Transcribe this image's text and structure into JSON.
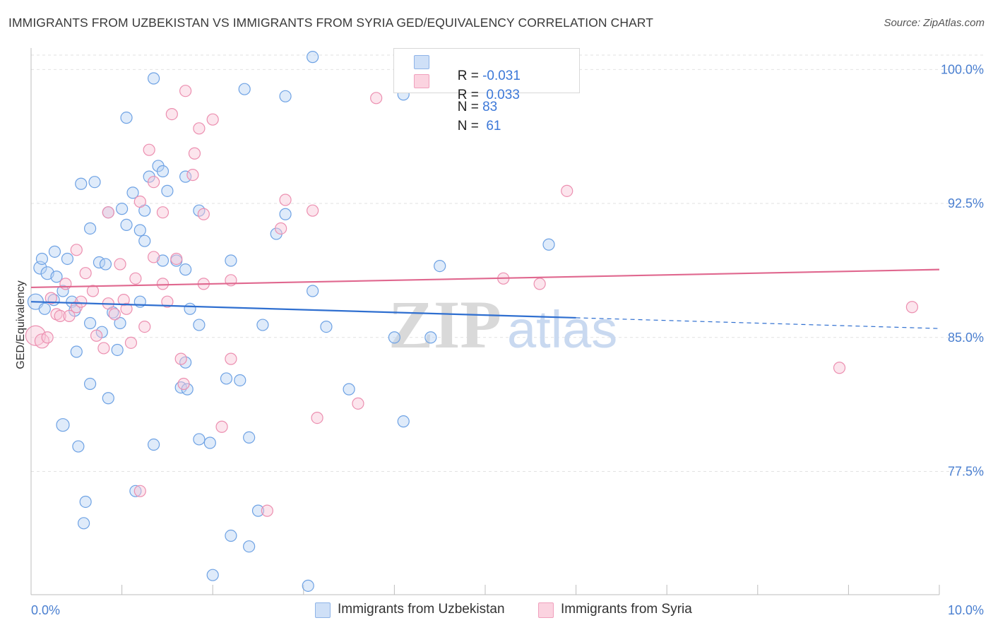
{
  "header": {
    "title": "IMMIGRANTS FROM UZBEKISTAN VS IMMIGRANTS FROM SYRIA GED/EQUIVALENCY CORRELATION CHART",
    "source": "Source: ZipAtlas.com"
  },
  "watermark": {
    "zip": "ZIP",
    "atlas": "atlas"
  },
  "legend_top": {
    "rows": [
      {
        "r_label": "R = ",
        "r_value": "-0.031",
        "n_label": "N = ",
        "n_value": "83",
        "color": "#a9c8f0"
      },
      {
        "r_label": "R = ",
        "r_value": " 0.033",
        "n_label": "N = ",
        "n_value": " 61",
        "color": "#f7b8cc"
      }
    ]
  },
  "legend_bottom": {
    "items": [
      {
        "label": "Immigrants from Uzbekistan",
        "color": "#a9c8f0"
      },
      {
        "label": "Immigrants from Syria",
        "color": "#f7b8cc"
      }
    ]
  },
  "chart_data": {
    "type": "scatter",
    "title": "IMMIGRANTS FROM UZBEKISTAN VS IMMIGRANTS FROM SYRIA GED/EQUIVALENCY CORRELATION CHART",
    "xlabel": "",
    "ylabel": "GED/Equivalency",
    "xlim": [
      0,
      10
    ],
    "ylim": [
      70.6,
      101.2
    ],
    "x_tick_labels": [
      "0.0%",
      "10.0%"
    ],
    "y_ticks": [
      77.5,
      85.0,
      92.5,
      100.0
    ],
    "y_tick_labels": [
      "77.5%",
      "85.0%",
      "92.5%",
      "100.0%"
    ],
    "grid": true,
    "legend_position": "bottom",
    "colors": {
      "uzbekistan": "#5b9be6",
      "syria": "#ee82a6",
      "uz_line": "#2f6fd0",
      "sy_line": "#e0688f"
    },
    "series": [
      {
        "name": "Immigrants from Uzbekistan",
        "r": -0.031,
        "n": 83,
        "trend": {
          "x0": 0.0,
          "y0": 87.0,
          "x1": 6.0,
          "y1": 86.1,
          "dash_to_x": 10.0,
          "dash_to_y": 85.5
        },
        "points": [
          [
            0.05,
            87.0,
            11
          ],
          [
            0.15,
            86.6,
            8
          ],
          [
            0.25,
            87.1,
            8
          ],
          [
            0.35,
            87.6,
            8
          ],
          [
            0.1,
            88.9,
            9
          ],
          [
            0.18,
            88.6,
            9
          ],
          [
            0.28,
            88.4,
            8
          ],
          [
            0.12,
            89.4,
            8
          ],
          [
            0.4,
            89.4,
            8
          ],
          [
            0.26,
            89.8,
            8
          ],
          [
            0.45,
            87.0,
            8
          ],
          [
            0.48,
            86.5,
            8
          ],
          [
            0.65,
            85.8,
            8
          ],
          [
            0.78,
            85.3,
            8
          ],
          [
            0.9,
            86.4,
            8
          ],
          [
            0.98,
            85.8,
            8
          ],
          [
            0.5,
            84.2,
            8
          ],
          [
            0.95,
            84.3,
            8
          ],
          [
            0.75,
            89.2,
            8
          ],
          [
            0.82,
            89.1,
            8
          ],
          [
            1.2,
            87.0,
            8
          ],
          [
            1.45,
            89.3,
            8
          ],
          [
            1.6,
            89.3,
            8
          ],
          [
            1.7,
            88.8,
            8
          ],
          [
            1.75,
            86.6,
            8
          ],
          [
            1.85,
            85.7,
            8
          ],
          [
            2.2,
            89.3,
            8
          ],
          [
            2.55,
            85.7,
            8
          ],
          [
            3.1,
            87.6,
            8
          ],
          [
            3.25,
            85.6,
            8
          ],
          [
            4.0,
            85.0,
            8
          ],
          [
            4.4,
            85.0,
            8
          ],
          [
            4.5,
            89.0,
            8
          ],
          [
            5.7,
            90.2,
            8
          ],
          [
            0.55,
            93.6,
            8
          ],
          [
            0.7,
            93.7,
            8
          ],
          [
            0.65,
            91.1,
            8
          ],
          [
            0.85,
            92.0,
            8
          ],
          [
            1.0,
            92.2,
            8
          ],
          [
            1.05,
            91.3,
            8
          ],
          [
            1.12,
            93.1,
            8
          ],
          [
            1.2,
            91.0,
            8
          ],
          [
            1.25,
            92.1,
            8
          ],
          [
            1.25,
            90.4,
            8
          ],
          [
            1.3,
            94.0,
            8
          ],
          [
            1.4,
            94.6,
            8
          ],
          [
            1.45,
            94.3,
            8
          ],
          [
            1.5,
            93.2,
            8
          ],
          [
            1.7,
            94.0,
            8
          ],
          [
            1.85,
            92.1,
            8
          ],
          [
            2.7,
            90.8,
            8
          ],
          [
            2.8,
            91.9,
            8
          ],
          [
            1.05,
            97.3,
            8
          ],
          [
            1.35,
            99.5,
            8
          ],
          [
            2.35,
            98.9,
            8
          ],
          [
            2.8,
            98.5,
            8
          ],
          [
            3.1,
            100.7,
            8
          ],
          [
            4.1,
            98.6,
            8
          ],
          [
            0.35,
            80.1,
            9
          ],
          [
            0.52,
            78.9,
            8
          ],
          [
            0.65,
            82.4,
            8
          ],
          [
            0.85,
            81.6,
            8
          ],
          [
            1.35,
            79.0,
            8
          ],
          [
            1.7,
            83.6,
            8
          ],
          [
            1.65,
            82.2,
            8
          ],
          [
            1.72,
            82.1,
            8
          ],
          [
            1.85,
            79.3,
            8
          ],
          [
            1.97,
            79.1,
            8
          ],
          [
            2.15,
            82.7,
            8
          ],
          [
            2.3,
            82.6,
            8
          ],
          [
            2.4,
            79.4,
            8
          ],
          [
            3.5,
            82.1,
            8
          ],
          [
            4.1,
            80.3,
            8
          ],
          [
            0.6,
            75.8,
            8
          ],
          [
            0.58,
            74.6,
            8
          ],
          [
            1.15,
            76.4,
            8
          ],
          [
            2.2,
            73.9,
            8
          ],
          [
            2.4,
            73.3,
            8
          ],
          [
            2.5,
            75.3,
            8
          ],
          [
            2.0,
            71.7,
            8
          ],
          [
            3.05,
            71.1,
            8
          ]
        ]
      },
      {
        "name": "Immigrants from Syria",
        "r": 0.033,
        "n": 61,
        "trend": {
          "x0": 0.0,
          "y0": 87.8,
          "x1": 10.0,
          "y1": 88.8
        },
        "points": [
          [
            0.05,
            85.1,
            14
          ],
          [
            0.12,
            84.8,
            10
          ],
          [
            0.18,
            85.0,
            8
          ],
          [
            0.22,
            87.2,
            8
          ],
          [
            0.28,
            86.3,
            8
          ],
          [
            0.32,
            86.2,
            8
          ],
          [
            0.38,
            88.0,
            8
          ],
          [
            0.42,
            86.2,
            8
          ],
          [
            0.5,
            86.7,
            8
          ],
          [
            0.55,
            87.0,
            8
          ],
          [
            0.6,
            88.6,
            8
          ],
          [
            0.68,
            87.6,
            8
          ],
          [
            0.72,
            85.1,
            8
          ],
          [
            0.8,
            84.4,
            8
          ],
          [
            0.85,
            86.9,
            8
          ],
          [
            0.92,
            86.3,
            8
          ],
          [
            0.98,
            89.1,
            8
          ],
          [
            1.02,
            87.1,
            8
          ],
          [
            1.05,
            86.6,
            8
          ],
          [
            1.1,
            84.7,
            8
          ],
          [
            1.15,
            88.3,
            8
          ],
          [
            1.25,
            85.6,
            8
          ],
          [
            1.35,
            89.5,
            8
          ],
          [
            1.45,
            88.0,
            8
          ],
          [
            1.5,
            87.0,
            8
          ],
          [
            1.6,
            89.4,
            8
          ],
          [
            1.9,
            88.0,
            8
          ],
          [
            2.2,
            88.2,
            8
          ],
          [
            5.2,
            88.3,
            8
          ],
          [
            5.6,
            88.0,
            8
          ],
          [
            0.5,
            89.9,
            8
          ],
          [
            0.85,
            92.0,
            8
          ],
          [
            1.2,
            92.6,
            8
          ],
          [
            1.3,
            95.5,
            8
          ],
          [
            1.35,
            93.7,
            8
          ],
          [
            1.45,
            92.0,
            8
          ],
          [
            1.55,
            97.5,
            8
          ],
          [
            1.8,
            95.3,
            8
          ],
          [
            1.78,
            94.1,
            8
          ],
          [
            1.9,
            91.9,
            8
          ],
          [
            2.75,
            91.1,
            8
          ],
          [
            2.8,
            92.7,
            8
          ],
          [
            3.1,
            92.1,
            8
          ],
          [
            5.9,
            93.2,
            8
          ],
          [
            9.7,
            86.7,
            8
          ],
          [
            1.7,
            98.8,
            8
          ],
          [
            1.85,
            96.7,
            8
          ],
          [
            2.0,
            97.2,
            8
          ],
          [
            3.8,
            98.4,
            8
          ],
          [
            1.65,
            83.8,
            8
          ],
          [
            1.68,
            82.4,
            8
          ],
          [
            2.1,
            80.0,
            8
          ],
          [
            2.2,
            83.8,
            8
          ],
          [
            3.15,
            80.5,
            8
          ],
          [
            3.6,
            81.3,
            8
          ],
          [
            8.9,
            83.3,
            8
          ],
          [
            1.2,
            76.4,
            8
          ],
          [
            2.6,
            75.3,
            8
          ]
        ]
      }
    ]
  }
}
